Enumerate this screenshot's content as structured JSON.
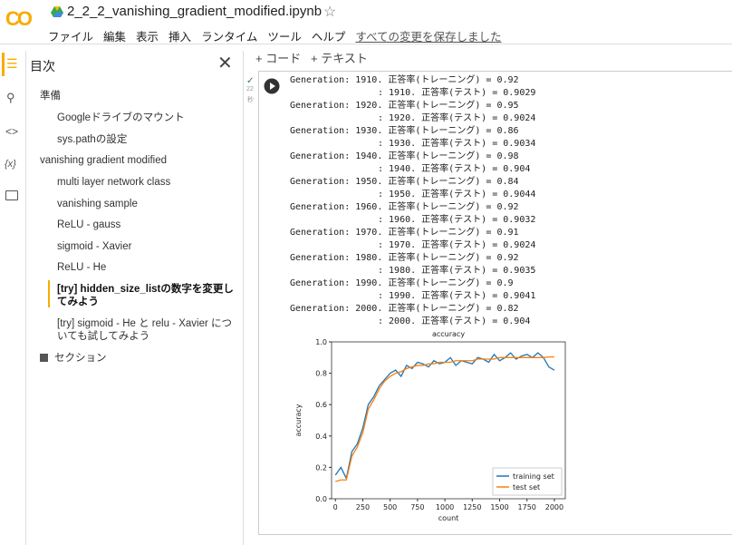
{
  "header": {
    "title": "2_2_2_vanishing_gradient_modified.ipynb",
    "menu": [
      "ファイル",
      "編集",
      "表示",
      "挿入",
      "ランタイム",
      "ツール",
      "ヘルプ"
    ],
    "save_status": "すべての変更を保存しました"
  },
  "sidebar": {
    "title": "目次",
    "toc": [
      {
        "label": "準備",
        "children": [
          {
            "label": "Googleドライブのマウント"
          },
          {
            "label": "sys.pathの設定"
          }
        ]
      },
      {
        "label": "vanishing gradient modified",
        "children": [
          {
            "label": "multi layer network class"
          },
          {
            "label": "vanishing sample"
          },
          {
            "label": "ReLU - gauss"
          },
          {
            "label": "sigmoid - Xavier"
          },
          {
            "label": "ReLU - He"
          },
          {
            "label": "[try] hidden_size_listの数字を変更してみよう",
            "selected": true
          },
          {
            "label": "[try] sigmoid - He と relu - Xavier についても試してみよう"
          }
        ]
      },
      {
        "label": "セクション"
      }
    ]
  },
  "toolbar": {
    "add_code": "コード",
    "add_text": "テキスト"
  },
  "cell": {
    "exec_time": "22",
    "exec_unit": "秒",
    "output_lines": [
      "Generation: 1910. 正答率(トレーニング) = 0.92",
      ": 1910. 正答率(テスト) = 0.9029",
      "Generation: 1920. 正答率(トレーニング) = 0.95",
      ": 1920. 正答率(テスト) = 0.9024",
      "Generation: 1930. 正答率(トレーニング) = 0.86",
      ": 1930. 正答率(テスト) = 0.9034",
      "Generation: 1940. 正答率(トレーニング) = 0.98",
      ": 1940. 正答率(テスト) = 0.904",
      "Generation: 1950. 正答率(トレーニング) = 0.84",
      ": 1950. 正答率(テスト) = 0.9044",
      "Generation: 1960. 正答率(トレーニング) = 0.92",
      ": 1960. 正答率(テスト) = 0.9032",
      "Generation: 1970. 正答率(トレーニング) = 0.91",
      ": 1970. 正答率(テスト) = 0.9024",
      "Generation: 1980. 正答率(トレーニング) = 0.92",
      ": 1980. 正答率(テスト) = 0.9035",
      "Generation: 1990. 正答率(トレーニング) = 0.9",
      ": 1990. 正答率(テスト) = 0.9041",
      "Generation: 2000. 正答率(トレーニング) = 0.82",
      ": 2000. 正答率(テスト) = 0.904"
    ],
    "chart": {
      "type": "line",
      "title": "accuracy",
      "x_label": "count",
      "y_label": "accuracy",
      "x": [
        0,
        50,
        100,
        150,
        200,
        250,
        300,
        350,
        400,
        450,
        500,
        550,
        600,
        650,
        700,
        750,
        800,
        850,
        900,
        950,
        1000,
        1050,
        1100,
        1150,
        1200,
        1250,
        1300,
        1350,
        1400,
        1450,
        1500,
        1550,
        1600,
        1650,
        1700,
        1750,
        1800,
        1850,
        1900,
        1950,
        2000
      ],
      "series": [
        {
          "name": "training set",
          "color": "#1f77b4",
          "values": [
            0.15,
            0.2,
            0.13,
            0.3,
            0.35,
            0.45,
            0.6,
            0.65,
            0.72,
            0.76,
            0.8,
            0.82,
            0.78,
            0.85,
            0.83,
            0.87,
            0.86,
            0.84,
            0.88,
            0.86,
            0.87,
            0.9,
            0.85,
            0.88,
            0.87,
            0.86,
            0.9,
            0.89,
            0.87,
            0.92,
            0.88,
            0.9,
            0.93,
            0.89,
            0.91,
            0.92,
            0.9,
            0.93,
            0.9,
            0.84,
            0.82
          ]
        },
        {
          "name": "test set",
          "color": "#ff7f0e",
          "values": [
            0.11,
            0.12,
            0.12,
            0.27,
            0.33,
            0.42,
            0.57,
            0.63,
            0.7,
            0.75,
            0.78,
            0.8,
            0.81,
            0.83,
            0.84,
            0.85,
            0.85,
            0.86,
            0.86,
            0.87,
            0.87,
            0.87,
            0.88,
            0.88,
            0.88,
            0.88,
            0.89,
            0.89,
            0.89,
            0.89,
            0.9,
            0.9,
            0.9,
            0.9,
            0.9,
            0.9,
            0.9,
            0.9,
            0.9,
            0.904,
            0.904
          ]
        }
      ],
      "xlim": [
        -35,
        2100
      ],
      "ylim": [
        0,
        1
      ],
      "xticks": [
        0,
        250,
        500,
        750,
        1000,
        1250,
        1500,
        1750,
        2000
      ],
      "yticks": [
        {
          "value": 0,
          "label": "0.0"
        },
        {
          "value": 0.2,
          "label": "0.2"
        },
        {
          "value": 0.4,
          "label": "0.4"
        },
        {
          "value": 0.6,
          "label": "0.6"
        },
        {
          "value": 0.8,
          "label": "0.8"
        },
        {
          "value": 1,
          "label": "1.0"
        }
      ],
      "legend": "lower right"
    }
  }
}
